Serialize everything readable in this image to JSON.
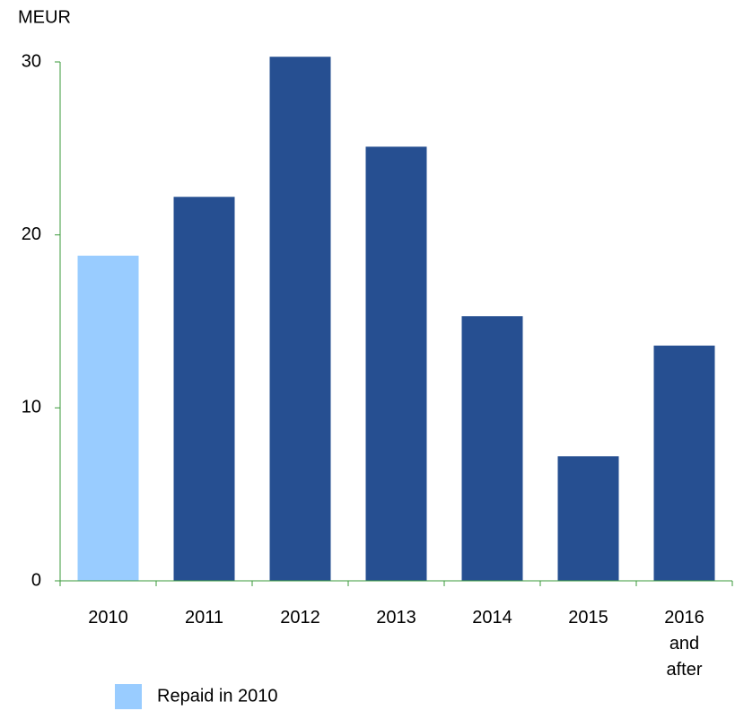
{
  "chart_data": {
    "type": "bar",
    "y_label": "MEUR",
    "categories": [
      "2010",
      "2011",
      "2012",
      "2013",
      "2014",
      "2015",
      "2016 and after"
    ],
    "values": [
      18.8,
      22.2,
      30.3,
      25.1,
      15.3,
      7.2,
      13.6
    ],
    "colors": [
      "#99ccff",
      "#264f91",
      "#264f91",
      "#264f91",
      "#264f91",
      "#264f91",
      "#264f91"
    ],
    "legend": [
      {
        "label": "Repaid in 2010",
        "color": "#99ccff"
      }
    ],
    "ylim": [
      0,
      30
    ],
    "yticks": [
      0,
      10,
      20,
      30
    ],
    "grid": false
  }
}
